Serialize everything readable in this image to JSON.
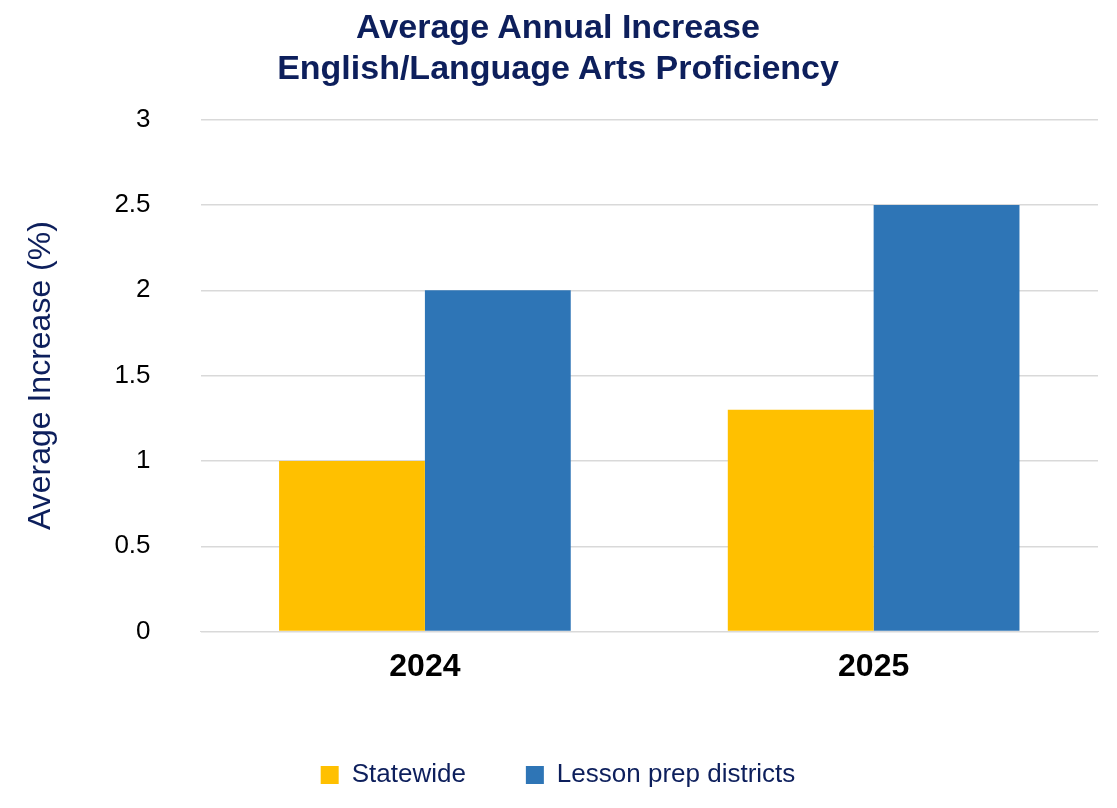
{
  "chart_data": {
    "type": "bar",
    "title": "Average Annual Increase\nEnglish/Language Arts Proficiency",
    "ylabel": "Average Increase (%)",
    "categories": [
      "2024",
      "2025"
    ],
    "series": [
      {
        "name": "Statewide",
        "color": "#ffc000",
        "values": [
          1,
          1.3
        ]
      },
      {
        "name": "Lesson prep districts",
        "color": "#2e75b6",
        "values": [
          2,
          2.5
        ]
      }
    ],
    "ylim": [
      0,
      3
    ],
    "yticks": [
      0,
      0.5,
      1,
      1.5,
      2,
      2.5,
      3
    ],
    "grid": "y",
    "legend": "bottom"
  }
}
